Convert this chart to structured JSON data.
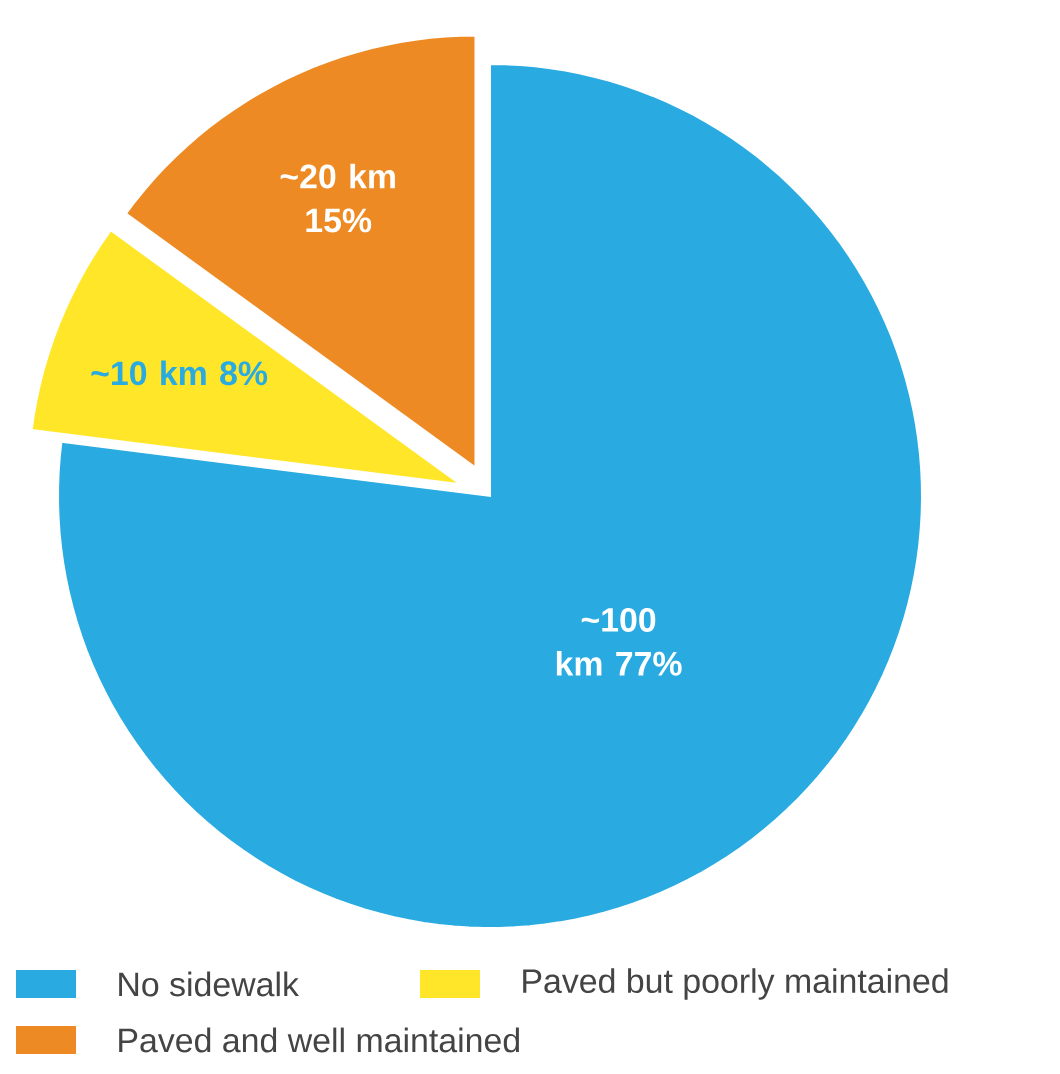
{
  "chart_data": {
    "type": "pie",
    "categories": [
      "No sidewalk",
      "Paved but poorly maintained",
      "Paved and well maintained"
    ],
    "values": [
      77,
      8,
      15
    ],
    "colors": [
      "#29abe2",
      "#ffe629",
      "#ee8a24"
    ],
    "value_labels": [
      "~100 km 77%",
      "~10 km 8%",
      "~20 km 15%"
    ],
    "legend": "bottom"
  }
}
